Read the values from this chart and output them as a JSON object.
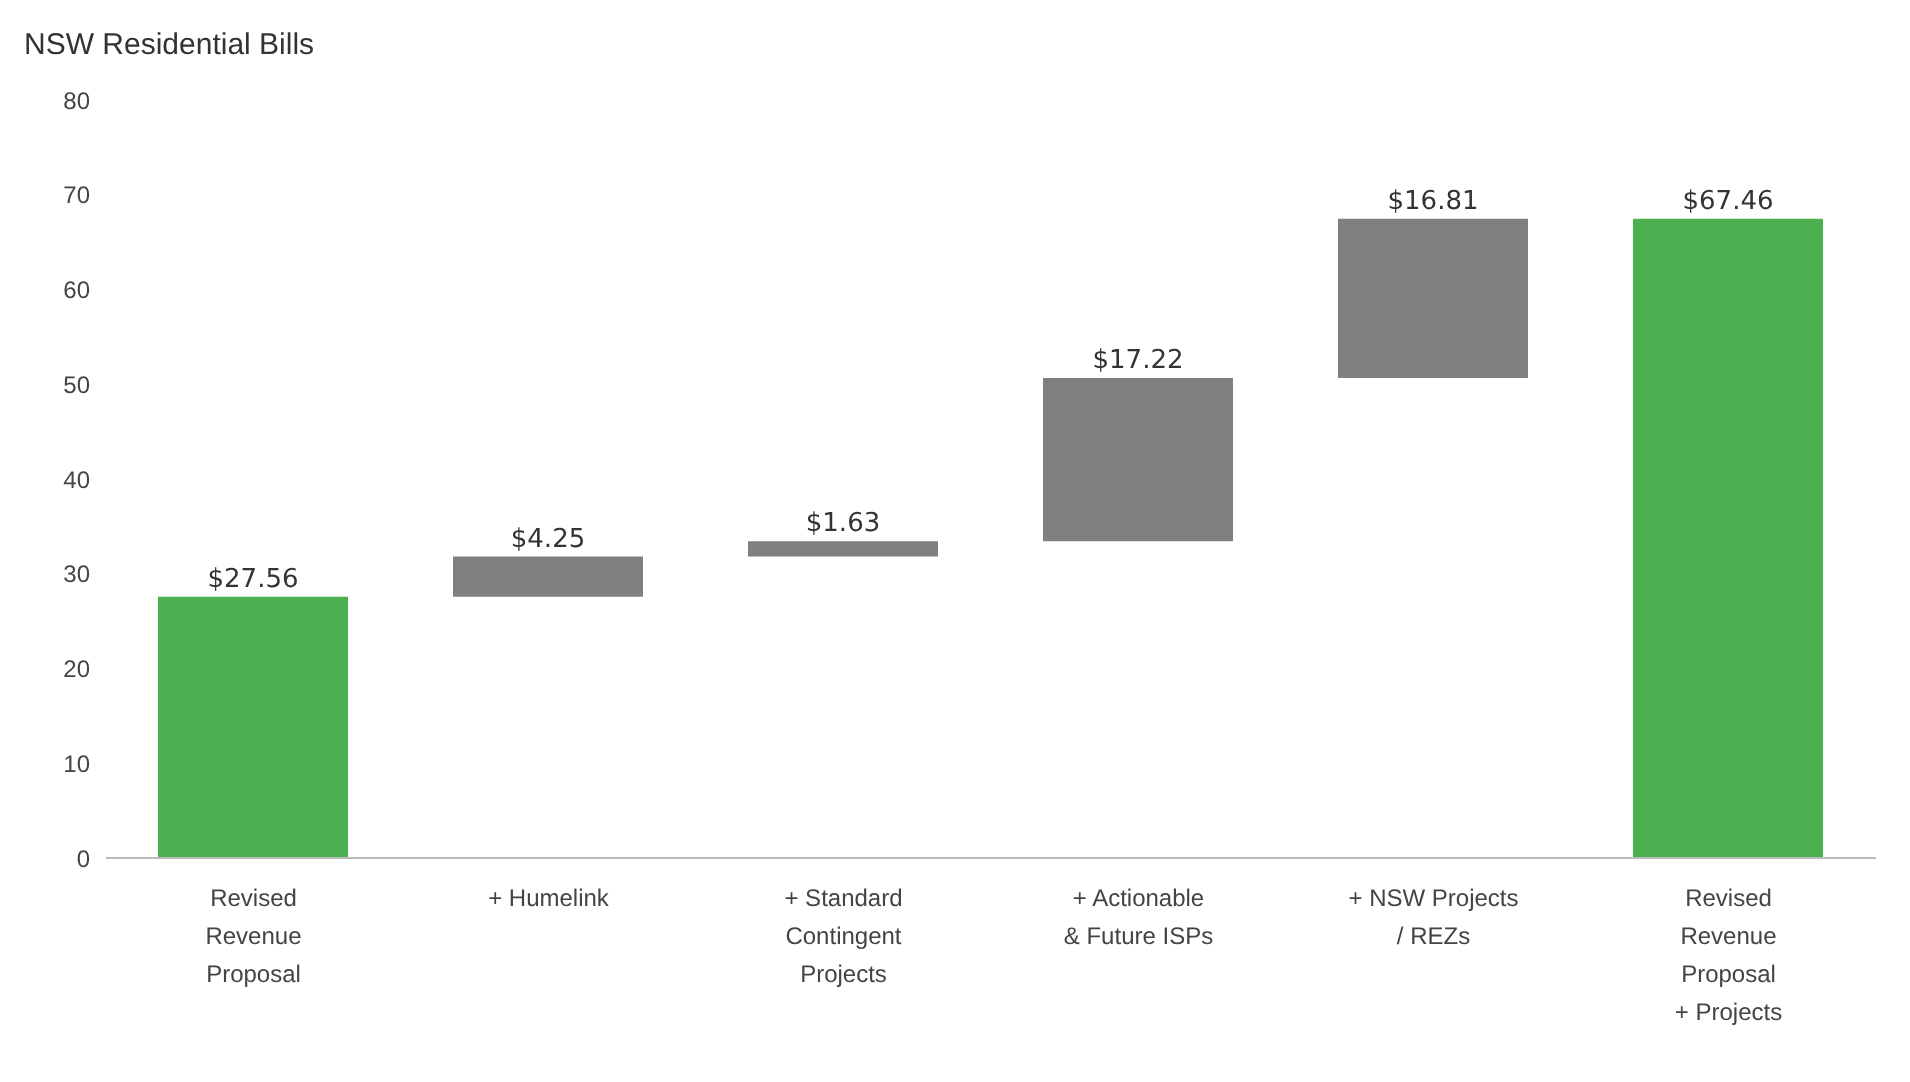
{
  "chart_data": {
    "type": "bar",
    "title": "NSW Residential Bills",
    "categories": [
      "Revised Revenue Proposal",
      "+ Humelink",
      "+ Standard Contingent Projects",
      "+ Actionable & Future ISPs",
      "+ NSW Projects / REZs",
      "Revised Revenue Proposal + Projects"
    ],
    "values": [
      27.56,
      4.25,
      1.63,
      17.22,
      16.81,
      67.46
    ],
    "base": [
      0,
      27.56,
      31.81,
      33.44,
      50.66,
      0
    ],
    "colors": [
      "#4caf50",
      "#808080",
      "#808080",
      "#808080",
      "#808080",
      "#4caf50"
    ],
    "value_labels": [
      "$27.56",
      "$4.25",
      "$1.63",
      "$17.22",
      "$16.81",
      "$67.46"
    ],
    "ylim": [
      0,
      80
    ],
    "yticks": [
      0,
      10,
      20,
      30,
      40,
      50,
      60,
      70,
      80
    ],
    "grid": false
  }
}
